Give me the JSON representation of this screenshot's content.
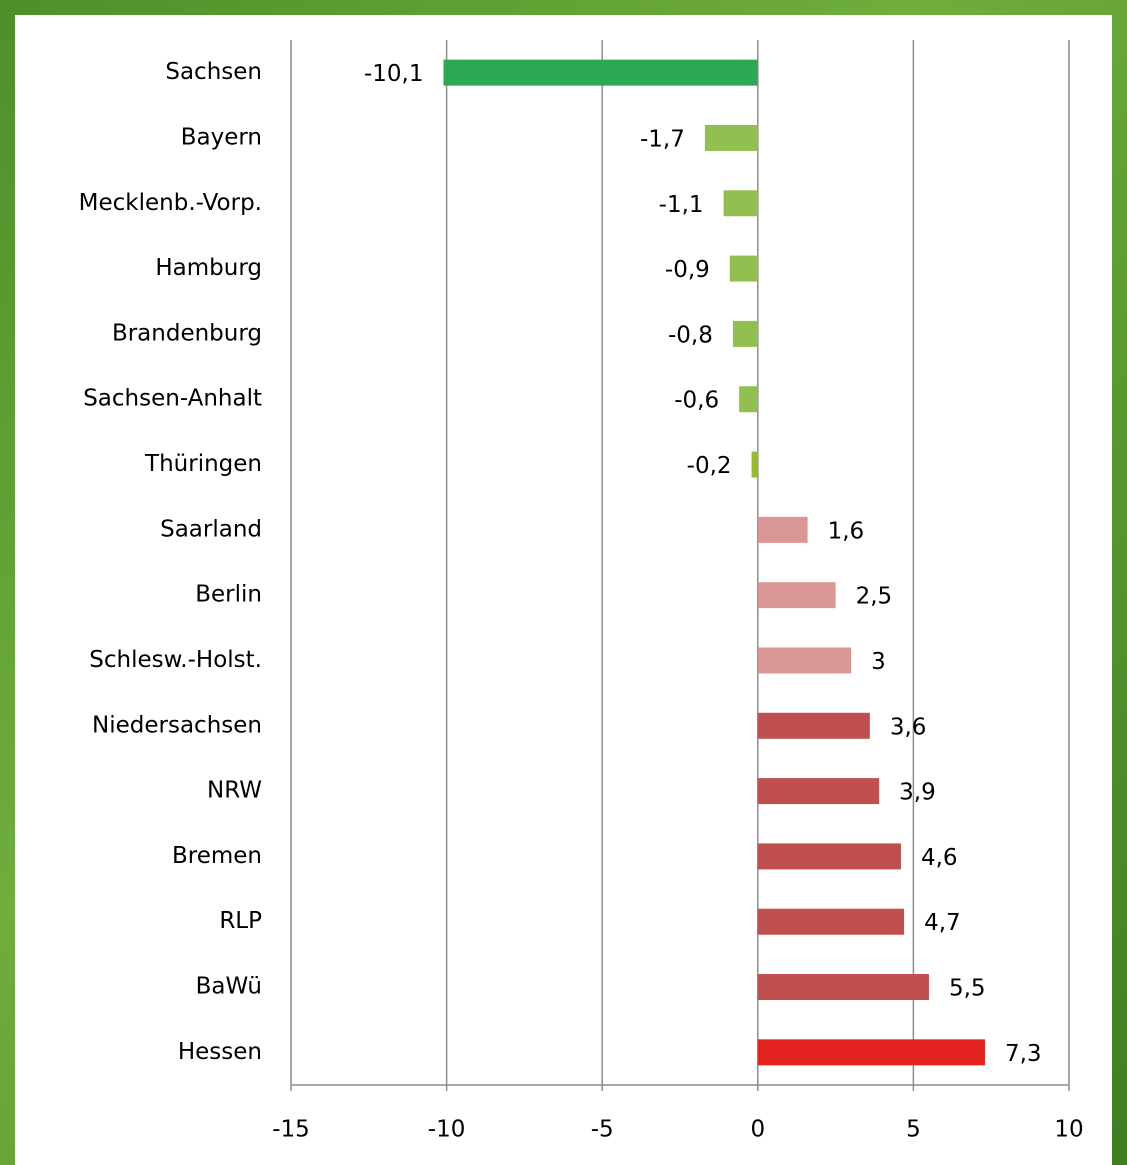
{
  "chart_data": {
    "type": "barh",
    "categories": [
      "Sachsen",
      "Bayern",
      "Mecklenb.-Vorp.",
      "Hamburg",
      "Brandenburg",
      "Sachsen-Anhalt",
      "Thüringen",
      "Saarland",
      "Berlin",
      "Schlesw.-Holst.",
      "Niedersachsen",
      "NRW",
      "Bremen",
      "RLP",
      "BaWü",
      "Hessen"
    ],
    "values": [
      -10.1,
      -1.7,
      -1.1,
      -0.9,
      -0.8,
      -0.6,
      -0.2,
      1.6,
      2.5,
      3,
      3.6,
      3.9,
      4.6,
      4.7,
      5.5,
      7.3
    ],
    "value_labels": [
      "-10,1",
      "-1,7",
      "-1,1",
      "-0,9",
      "-0,8",
      "-0,6",
      "-0,2",
      "1,6",
      "2,5",
      "3",
      "3,6",
      "3,9",
      "4,6",
      "4,7",
      "5,5",
      "7,3"
    ],
    "colors": [
      "#2ea853",
      "#92c050",
      "#92c050",
      "#92c050",
      "#92c050",
      "#92c050",
      "#9bbb2f",
      "#d99694",
      "#d99694",
      "#d99694",
      "#c0504d",
      "#c0504d",
      "#c0504d",
      "#c0504d",
      "#c0504d",
      "#e32320"
    ],
    "xlim": [
      -15,
      10
    ],
    "xticks": [
      -15,
      -10,
      -5,
      0,
      5,
      10
    ],
    "grid": true
  }
}
